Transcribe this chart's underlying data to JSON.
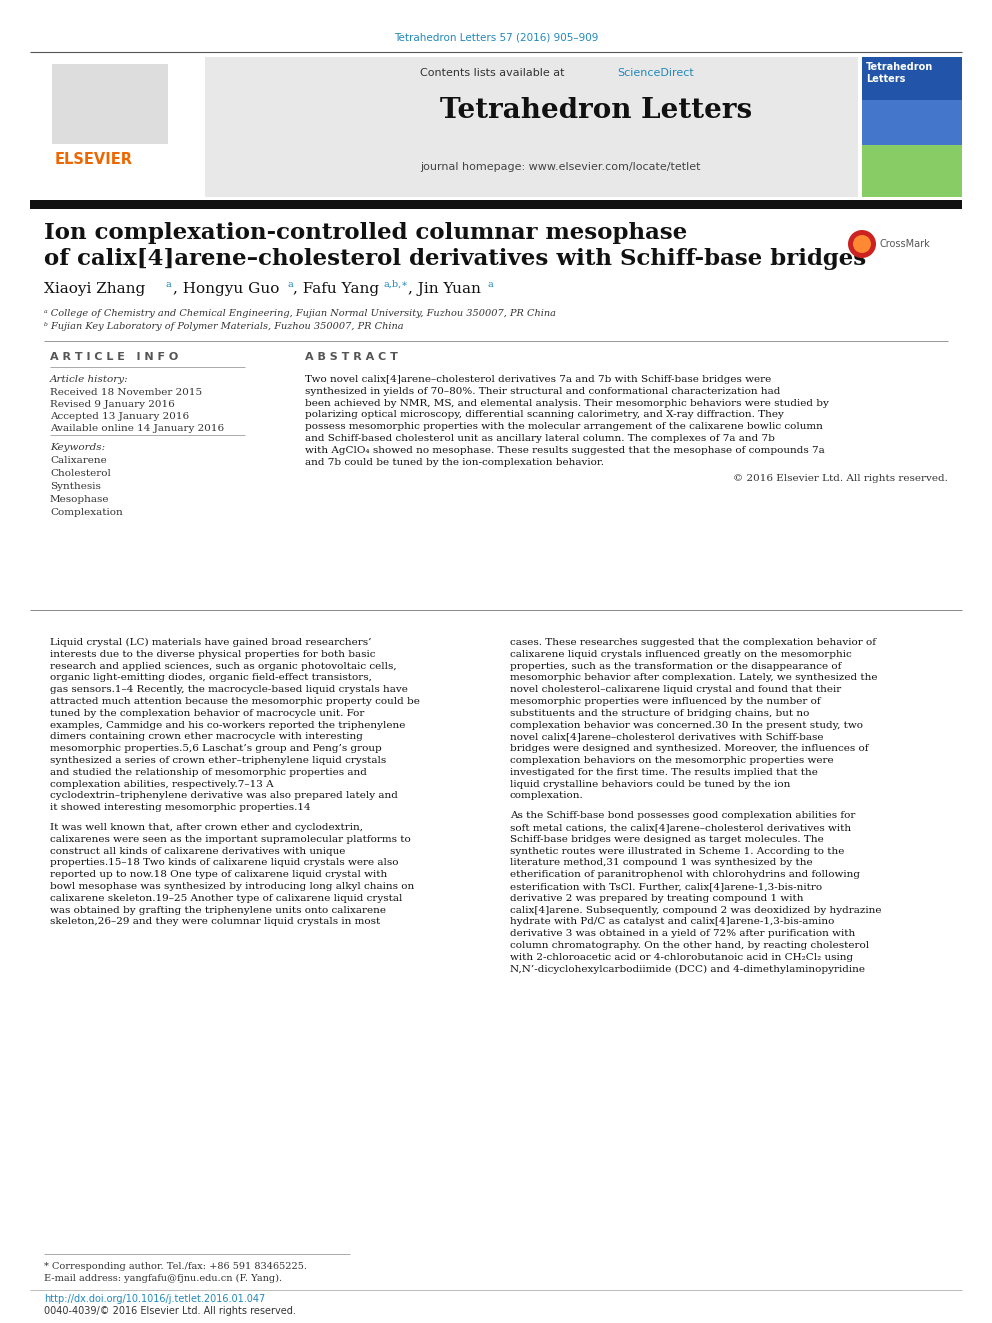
{
  "bg_color": "#ffffff",
  "top_link_text": "Tetrahedron Letters 57 (2016) 905–909",
  "top_link_color": "#2288bb",
  "header_bg": "#e8e8e8",
  "sciencedirect_color": "#2288bb",
  "journal_title": "Tetrahedron Letters",
  "journal_homepage": "journal homepage: www.elsevier.com/locate/tetlet",
  "thick_bar_color": "#111111",
  "article_title_line1": "Ion complexation-controlled columnar mesophase",
  "article_title_line2": "of calix[4]arene–cholesterol derivatives with Schiff-base bridges",
  "affil_a": "ᵃ College of Chemistry and Chemical Engineering, Fujian Normal University, Fuzhou 350007, PR China",
  "affil_b": "ᵇ Fujian Key Laboratory of Polymer Materials, Fuzhou 350007, PR China",
  "section_article_info": "A R T I C L E   I N F O",
  "section_abstract": "A B S T R A C T",
  "article_history_label": "Article history:",
  "received": "Received 18 November 2015",
  "revised": "Revised 9 January 2016",
  "accepted": "Accepted 13 January 2016",
  "available": "Available online 14 January 2016",
  "keywords_label": "Keywords:",
  "keywords": [
    "Calixarene",
    "Cholesterol",
    "Synthesis",
    "Mesophase",
    "Complexation"
  ],
  "abstract_text": "Two novel calix[4]arene–cholesterol derivatives 7a and 7b with Schiff-base bridges were synthesized in yields of 70–80%. Their structural and conformational characterization had been achieved by NMR, MS, and elemental analysis. Their mesomorphic behaviors were studied by polarizing optical microscopy, differential scanning calorimetry, and X-ray diffraction. They possess mesomorphic properties with the molecular arrangement of the calixarene bowlic column and Schiff-based cholesterol unit as ancillary lateral column. The complexes of 7a and 7b with AgClO₄ showed no mesophase. These results suggested that the mesophase of compounds 7a and 7b could be tuned by the ion-complexation behavior.",
  "copyright": "© 2016 Elsevier Ltd. All rights reserved.",
  "body_col1_para1": "    Liquid crystal (LC) materials have gained broad researchers’ interests due to the diverse physical properties for both basic research and applied sciences, such as organic photovoltaic cells, organic light-emitting diodes, organic field-effect transistors, gas sensors.",
  "body_col1_para1_sup": "1–4",
  "body_col1_para1b": " Recently, the macrocycle-based liquid crystals have attracted much attention because the mesomorphic property could be tuned by the complexation behavior of macrocycle unit. For examples, Cammidge and his co-workers reported the triphenylene dimers containing crown ether macrocycle with interesting mesomorphic properties.",
  "body_col1_para1c": "5,6",
  "body_col1_para1d": " Laschat’s group and Peng’s group synthesized a series of crown ether–triphenylene liquid crystals and studied the relationship of mesomorphic properties and complexation abilities, respectively.",
  "body_col1_para1e": "7–13",
  "body_col1_para1f": " A cyclodextrin–triphenylene derivative was also prepared lately and it showed interesting mesomorphic properties.",
  "body_col1_para1g": "14",
  "body_col1_para2": "    It was well known that, after crown ether and cyclodextrin, calixarenes were seen as the important supramolecular platforms to construct all kinds of calixarene derivatives with unique properties.",
  "body_col1_para2a": "15–18",
  "body_col1_para2b": " Two kinds of calixarene liquid crystals were also reported up to now.",
  "body_col1_para2c": "18",
  "body_col1_para2d": " One type of calixarene liquid crystal with bowl mesophase was synthesized by introducing long alkyl chains on calixarene skeleton.",
  "body_col1_para2e": "19–25",
  "body_col1_para2f": " Another type of calixarene liquid crystal was obtained by grafting the triphenylene units onto calixarene skeleton,",
  "body_col1_para2g": "26–29",
  "body_col1_para2h": " and they were columnar liquid crystals in most",
  "body_col2_para1": "cases. These researches suggested that the complexation behavior of calixarene liquid crystals influenced greatly on the mesomorphic properties, such as the transformation or the disappearance of mesomorphic behavior after complexation. Lately, we synthesized the novel cholesterol–calixarene liquid crystal and found that their mesomorphic properties were influenced by the number of substituents and the structure of bridging chains, but no complexation behavior was concerned.",
  "body_col2_para1a": "30",
  "body_col2_para1b": " In the present study, two novel calix[4]arene–cholesterol derivatives with Schiff-base bridges were designed and synthesized. Moreover, the influences of complexation behaviors on the mesomorphic properties were investigated for the first time. The results implied that the liquid crystalline behaviors could be tuned by the ion complexation.",
  "body_col2_para2": "    As the Schiff-base bond possesses good complexation abilities for soft metal cations, the calix[4]arene–cholesterol derivatives with Schiff-base bridges were designed as target molecules. The synthetic routes were illustrated in Scheme 1. According to the literature method,",
  "body_col2_para2a": "31",
  "body_col2_para2b": " compound 1 was synthesized by the etherification of paranitrophenol with chlorohydrins and following esterification with TsCl. Further, calix[4]arene-1,3-bis-nitro derivative 2 was prepared by treating compound 1 with calix[4]arene. Subsequently, compound 2 was deoxidized by hydrazine hydrate with Pd/C as catalyst and calix[4]arene-1,3-bis-amino derivative 3 was obtained in a yield of 72% after purification with column chromatography. On the other hand, by reacting cholesterol with 2-chloroacetic acid or 4-chlorobutanoic acid in CH₂Cl₂ using N,N’-dicyclohexylcarbodiimide (DCC) and 4-dimethylaminopyridine",
  "footer_note": "* Corresponding author. Tel./fax: +86 591 83465225.",
  "footer_email": "E-mail address: yangfafu@fjnu.edu.cn (F. Yang).",
  "footer_doi": "http://dx.doi.org/10.1016/j.tetlet.2016.01.047",
  "footer_issn": "0040-4039/© 2016 Elsevier Ltd. All rights reserved.",
  "elsevier_orange": "#ee6600",
  "link_color": "#2288bb",
  "rule_color": "#888888",
  "text_dark": "#111111",
  "text_mid": "#333333"
}
